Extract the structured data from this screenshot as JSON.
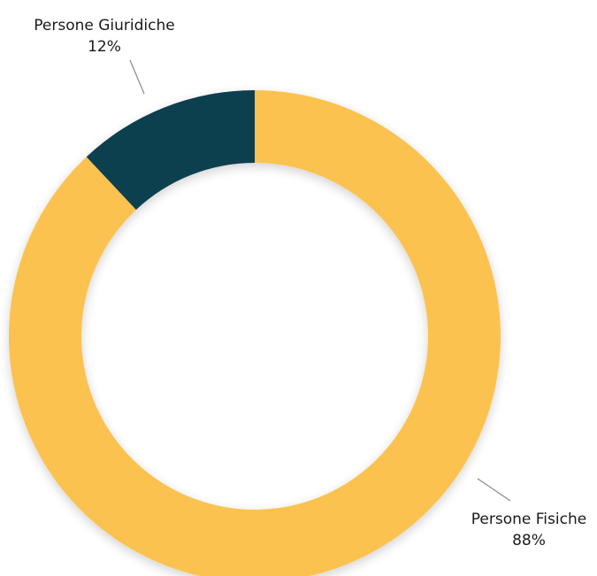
{
  "chart_data": {
    "type": "pie",
    "donut": true,
    "slices": [
      {
        "label": "Persone Giuridiche",
        "value": 12,
        "value_label": "12%",
        "color": "#0d3f4f"
      },
      {
        "label": "Persone Fisiche",
        "value": 88,
        "value_label": "88%",
        "color": "#fcc24f"
      }
    ],
    "title": "",
    "legend": "none"
  }
}
